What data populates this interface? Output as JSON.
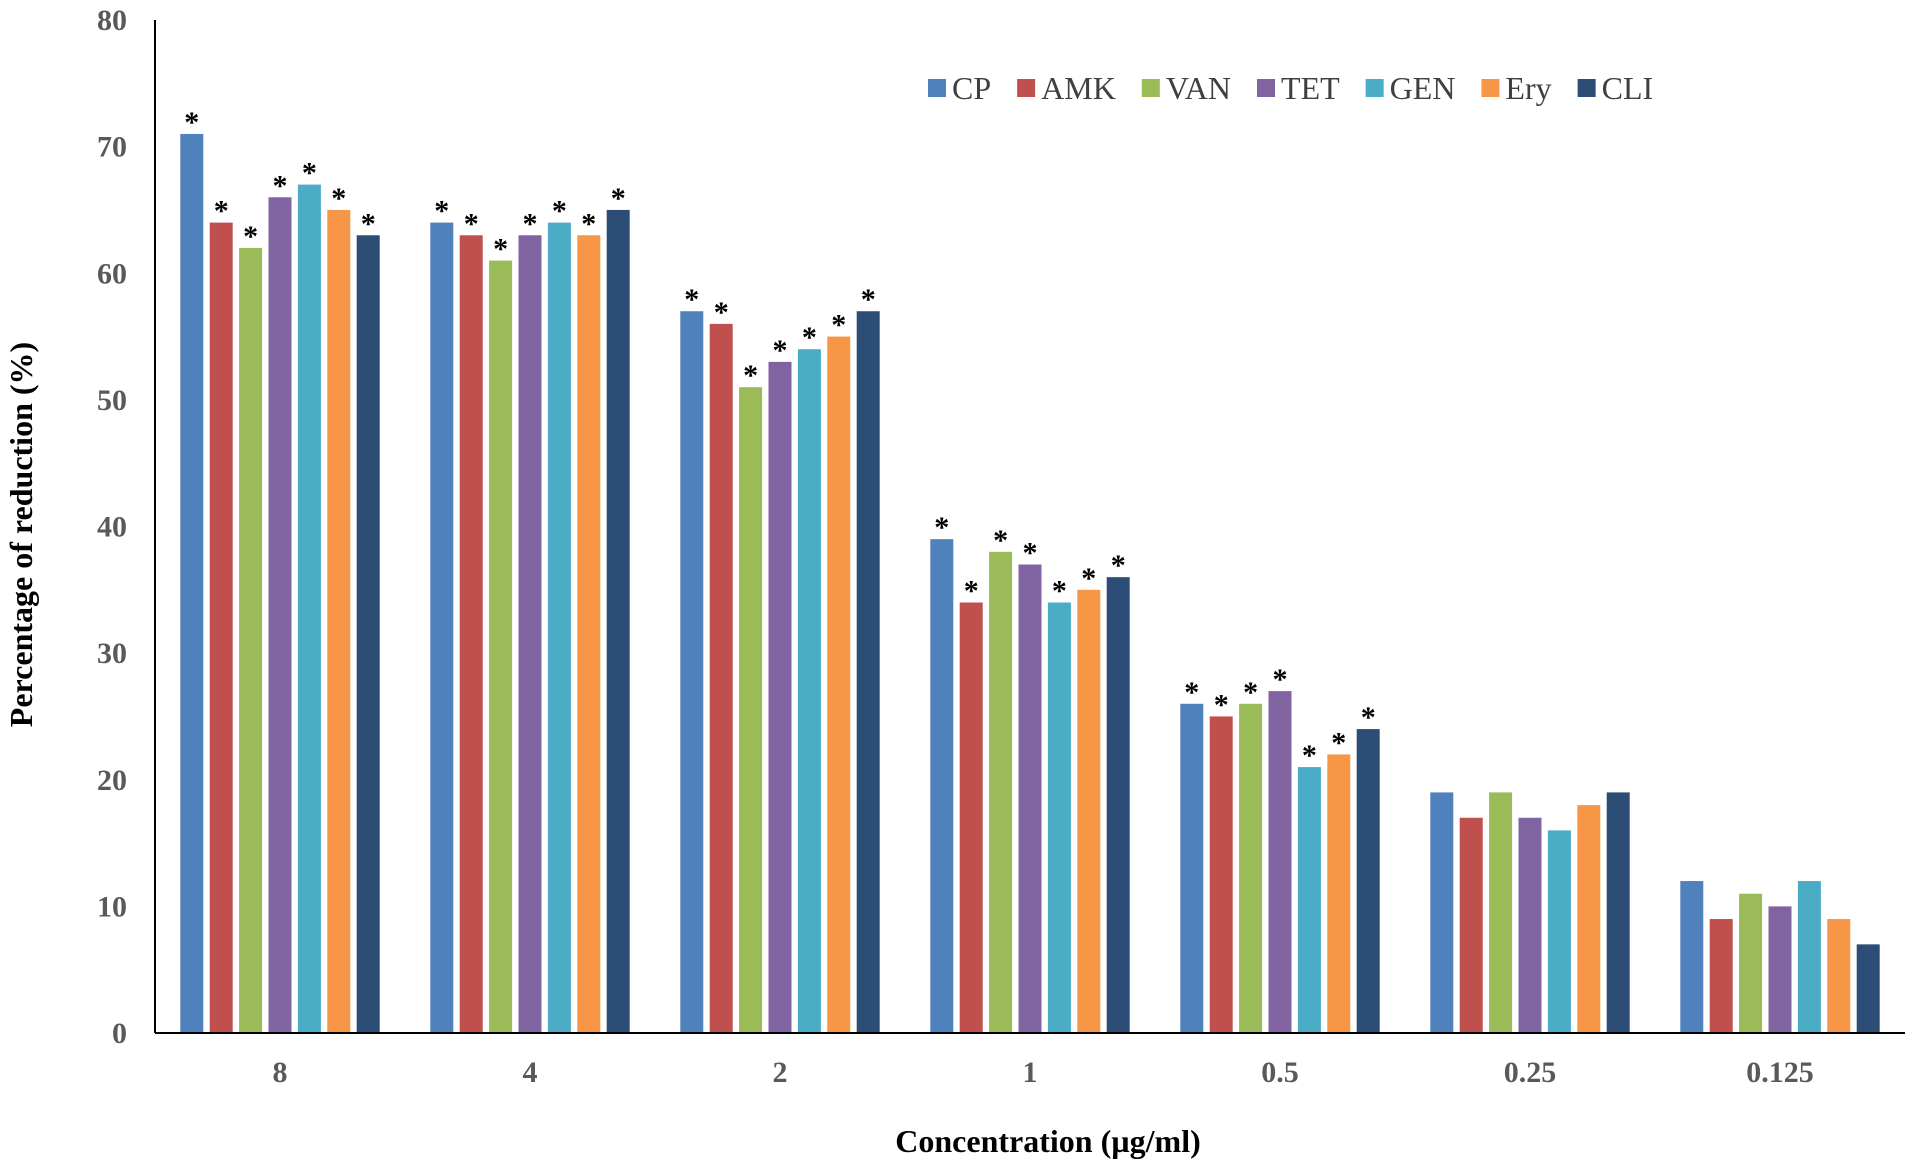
{
  "chart_data": {
    "type": "bar",
    "title": "",
    "xlabel": "Concentration (µg/ml)",
    "ylabel": "Percentage of reduction (%)",
    "ylim": [
      0,
      80
    ],
    "yticks": [
      "0",
      "10",
      "20",
      "30",
      "40",
      "50",
      "60",
      "70",
      "80"
    ],
    "categories": [
      "8",
      "4",
      "2",
      "1",
      "0.5",
      "0.25",
      "0.125"
    ],
    "legend_position": "top-right",
    "significance_marker": "*",
    "series": [
      {
        "name": "CP",
        "color": "#4F81BD",
        "values": [
          71,
          64,
          57,
          39,
          26,
          19,
          12
        ],
        "significant": [
          true,
          true,
          true,
          true,
          true,
          false,
          false
        ]
      },
      {
        "name": "AMK",
        "color": "#C0504D",
        "values": [
          64,
          63,
          56,
          34,
          25,
          17,
          9
        ],
        "significant": [
          true,
          true,
          true,
          true,
          true,
          false,
          false
        ]
      },
      {
        "name": "VAN",
        "color": "#9BBB59",
        "values": [
          62,
          61,
          51,
          38,
          26,
          19,
          11
        ],
        "significant": [
          true,
          true,
          true,
          true,
          true,
          false,
          false
        ]
      },
      {
        "name": "TET",
        "color": "#8064A2",
        "values": [
          66,
          63,
          53,
          37,
          27,
          17,
          10
        ],
        "significant": [
          true,
          true,
          true,
          true,
          true,
          false,
          false
        ]
      },
      {
        "name": "GEN",
        "color": "#4BACC6",
        "values": [
          67,
          64,
          54,
          34,
          21,
          16,
          12
        ],
        "significant": [
          true,
          true,
          true,
          true,
          true,
          false,
          false
        ]
      },
      {
        "name": "Ery",
        "color": "#F79646",
        "values": [
          65,
          63,
          55,
          35,
          22,
          18,
          9
        ],
        "significant": [
          true,
          true,
          true,
          true,
          true,
          false,
          false
        ]
      },
      {
        "name": "CLI",
        "color": "#2C4D75",
        "values": [
          63,
          65,
          57,
          36,
          24,
          19,
          7
        ],
        "significant": [
          true,
          true,
          true,
          true,
          true,
          false,
          false
        ]
      }
    ]
  }
}
